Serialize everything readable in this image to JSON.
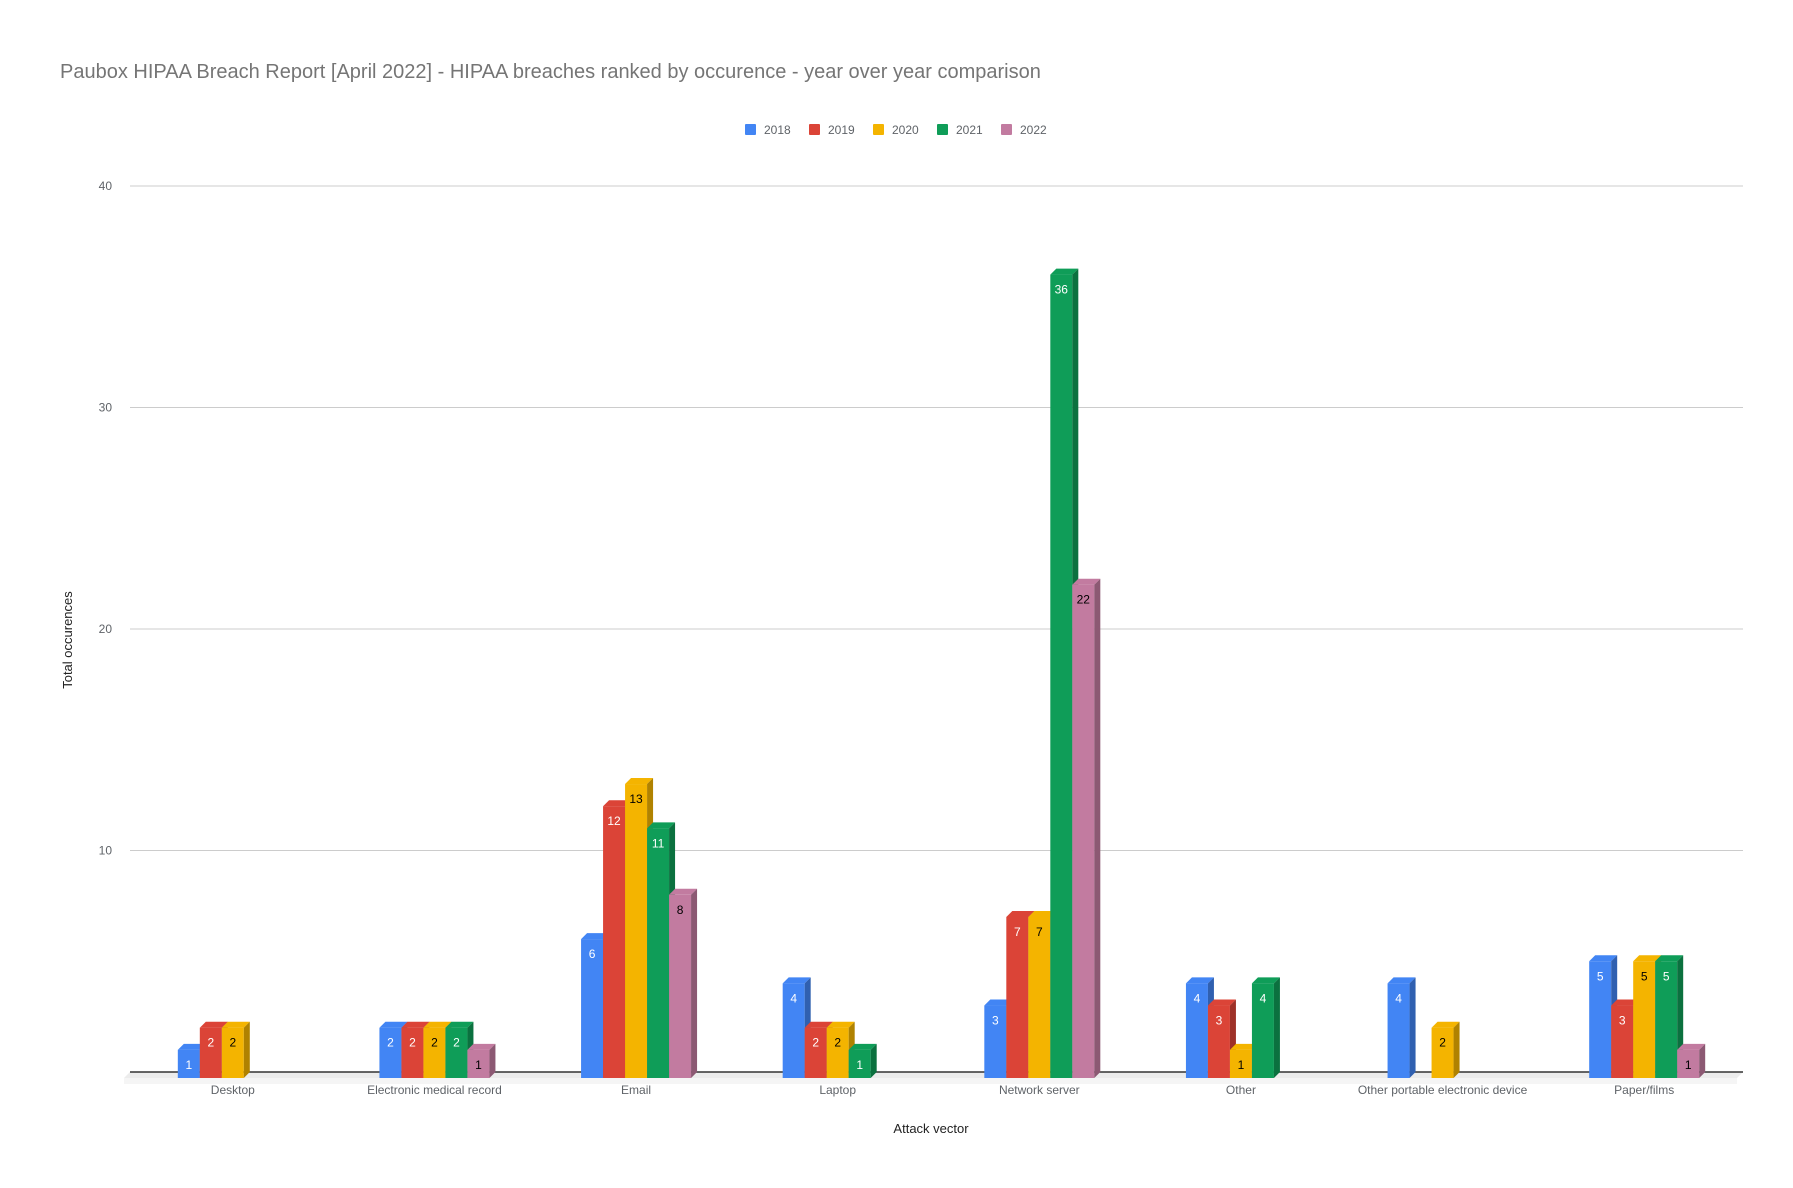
{
  "chart_data": {
    "type": "bar",
    "title": "Paubox HIPAA Breach Report [April 2022] - HIPAA breaches ranked by occurence - year over year comparison",
    "xlabel": "Attack vector",
    "ylabel": "Total occurences",
    "ylim": [
      0,
      40
    ],
    "yticks": [
      10,
      20,
      30,
      40
    ],
    "grid": true,
    "legend_position": "top",
    "categories": [
      "Desktop",
      "Electronic medical record",
      "Email",
      "Laptop",
      "Network server",
      "Other",
      "Other portable electronic device",
      "Paper/films"
    ],
    "series": [
      {
        "name": "2018",
        "color": "#4285f4",
        "label_color": "#ffffff",
        "values": [
          1,
          2,
          6,
          4,
          3,
          4,
          4,
          5
        ]
      },
      {
        "name": "2019",
        "color": "#db4437",
        "label_color": "#ffffff",
        "values": [
          2,
          2,
          12,
          2,
          7,
          3,
          null,
          3
        ]
      },
      {
        "name": "2020",
        "color": "#f4b400",
        "label_color": "#000000",
        "values": [
          2,
          2,
          13,
          2,
          7,
          1,
          2,
          5
        ]
      },
      {
        "name": "2021",
        "color": "#0f9d58",
        "label_color": "#ffffff",
        "values": [
          null,
          2,
          11,
          1,
          36,
          4,
          null,
          5
        ]
      },
      {
        "name": "2022",
        "color": "#c27ba0",
        "label_color": "#000000",
        "values": [
          null,
          1,
          8,
          null,
          22,
          null,
          null,
          1
        ]
      }
    ]
  }
}
